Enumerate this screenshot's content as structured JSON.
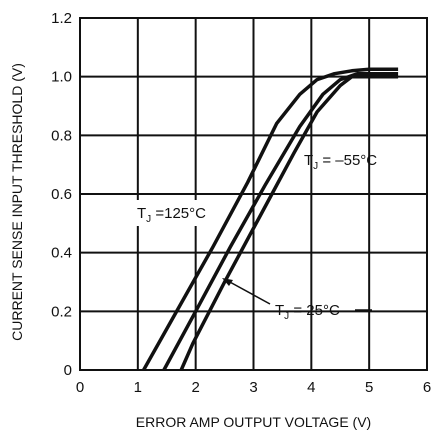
{
  "chart_data": {
    "type": "line",
    "title": "",
    "xlabel": "ERROR AMP OUTPUT VOLTAGE (V)",
    "ylabel": "CURRENT SENSE INPUT THRESHOLD (V)",
    "xlim": [
      0,
      6
    ],
    "ylim": [
      0,
      1.2
    ],
    "xticks": [
      "0",
      "1",
      "2",
      "3",
      "4",
      "5",
      "6"
    ],
    "yticks": [
      "0",
      "0.2",
      "0.4",
      "0.6",
      "0.8",
      "1.0",
      "1.2"
    ],
    "grid": true,
    "series": [
      {
        "name": "TJ = 125°C",
        "x": [
          1.1,
          1.7,
          2.3,
          2.9,
          3.4,
          3.8,
          4.1,
          4.4,
          4.7,
          5.0,
          5.5
        ],
        "y": [
          0.0,
          0.21,
          0.42,
          0.64,
          0.84,
          0.94,
          0.99,
          1.01,
          1.02,
          1.025,
          1.025
        ]
      },
      {
        "name": "TJ = 25°C",
        "x": [
          1.45,
          2.0,
          2.6,
          3.2,
          3.8,
          4.2,
          4.5,
          4.8,
          5.0,
          5.5
        ],
        "y": [
          0.0,
          0.2,
          0.42,
          0.63,
          0.83,
          0.94,
          0.99,
          1.01,
          1.01,
          1.01
        ]
      },
      {
        "name": "TJ = -55°C",
        "x": [
          1.75,
          1.95,
          2.5,
          3.1,
          3.7,
          4.1,
          4.5,
          4.7,
          5.0,
          5.5
        ],
        "y": [
          0.0,
          0.09,
          0.3,
          0.52,
          0.74,
          0.88,
          0.97,
          1.0,
          1.0,
          1.0
        ]
      }
    ],
    "annotations": {
      "label_125": {
        "main": "T",
        "sub": "J",
        "rest": " =125°C"
      },
      "label_25": {
        "main": "T",
        "sub": "J",
        "rest": " = 25°C"
      },
      "label_m55": {
        "main": "T",
        "sub": "J",
        "rest": " = –55°C"
      }
    }
  }
}
